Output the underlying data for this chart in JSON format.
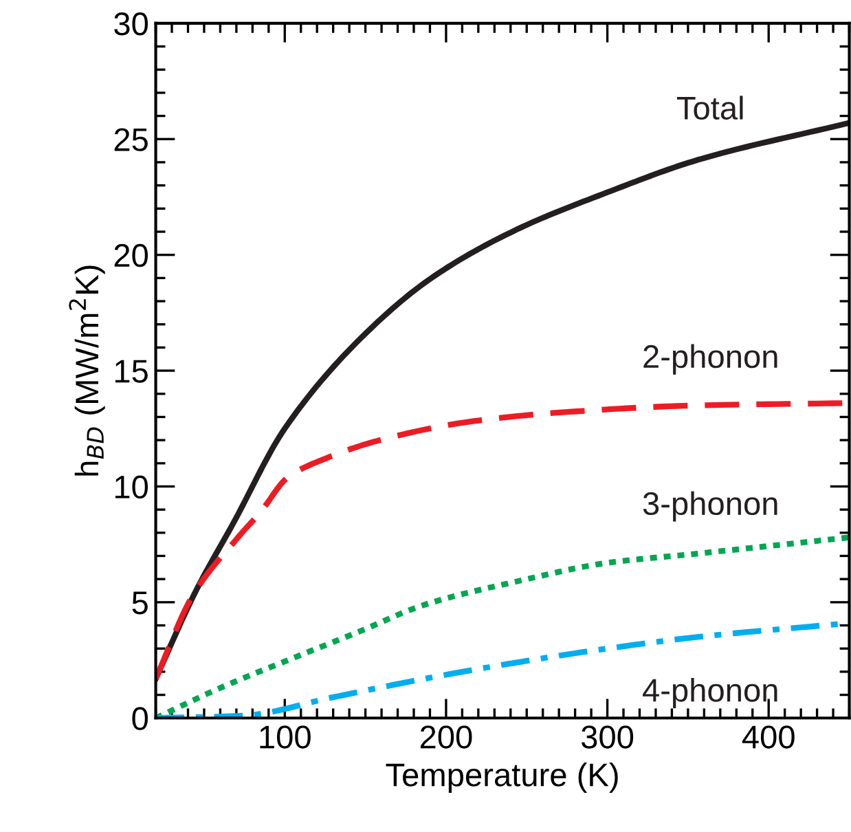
{
  "chart_data": {
    "type": "line",
    "xlabel": "Temperature (K)",
    "ylabel": "h$_{BD}$ (MW/m$^{2}$K)",
    "xlim": [
      20,
      450
    ],
    "ylim": [
      0,
      30
    ],
    "xticks": [
      100,
      200,
      300,
      400
    ],
    "yticks": [
      0,
      5,
      10,
      15,
      20,
      25,
      30
    ],
    "grid": false,
    "legend": false,
    "series": [
      {
        "name": "Total",
        "color": "#231f20",
        "line_style": "solid",
        "x": [
          20,
          45,
          68,
          100,
          153,
          193,
          244,
          300,
          356,
          450
        ],
        "values": [
          1.7,
          5.5,
          8.4,
          12.5,
          16.8,
          19.1,
          21.1,
          22.7,
          24.1,
          25.7
        ]
      },
      {
        "name": "2-phonon",
        "color": "#ed1c24",
        "line_style": "dashed",
        "x": [
          20,
          43,
          71,
          85,
          102,
          125,
          159,
          215,
          272,
          356,
          450
        ],
        "values": [
          1.7,
          5.3,
          7.8,
          8.9,
          10.4,
          11.2,
          12.0,
          12.8,
          13.2,
          13.5,
          13.6
        ]
      },
      {
        "name": "3-phonon",
        "color": "#00a651",
        "line_style": "dotted",
        "x": [
          20,
          60,
          102,
          145,
          187,
          244,
          300,
          356,
          450
        ],
        "values": [
          0,
          1.3,
          2.5,
          3.7,
          4.9,
          5.9,
          6.7,
          7.1,
          7.8
        ]
      },
      {
        "name": "4-phonon",
        "color": "#00aeef",
        "line_style": "dashdot",
        "x": [
          20,
          74,
          130,
          187,
          244,
          300,
          356,
          450
        ],
        "values": [
          0,
          0.1,
          0.9,
          1.7,
          2.4,
          3.0,
          3.5,
          4.1
        ]
      }
    ]
  }
}
